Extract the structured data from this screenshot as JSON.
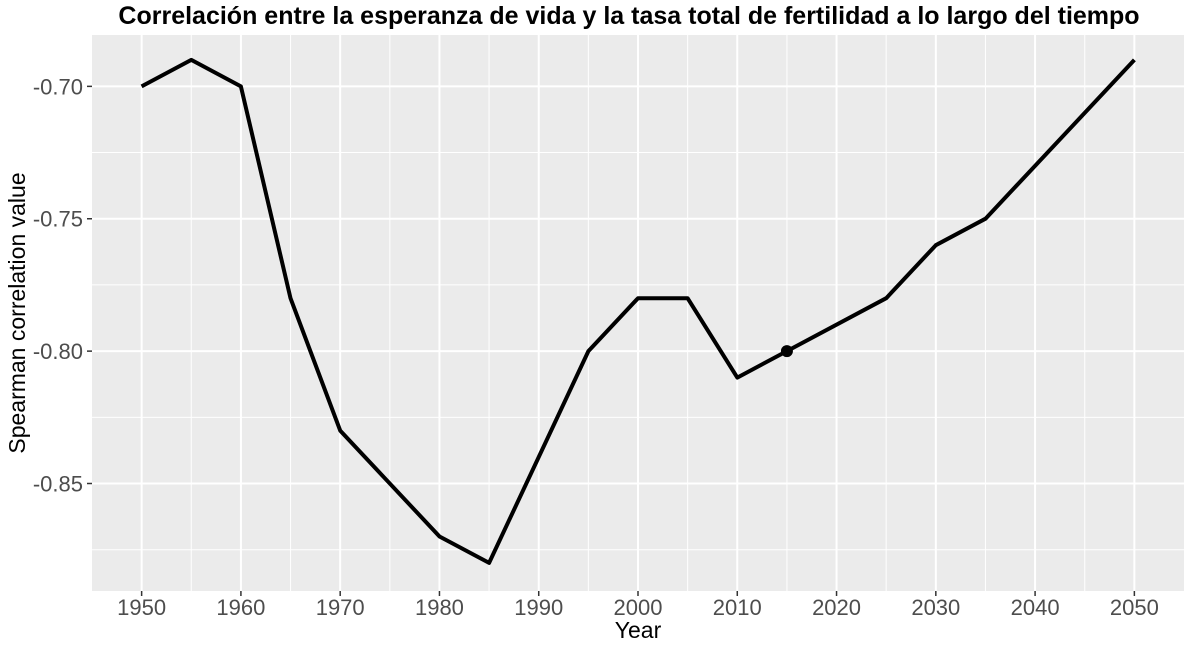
{
  "chart_data": {
    "type": "line",
    "title": "Correlación entre la esperanza de vida y la tasa total de fertilidad a lo largo del tiempo",
    "xlabel": "Year",
    "ylabel": "Spearman correlation value",
    "x": [
      1950,
      1955,
      1960,
      1965,
      1970,
      1980,
      1985,
      1995,
      2000,
      2005,
      2010,
      2015,
      2025,
      2030,
      2035,
      2050
    ],
    "series": [
      {
        "values": [
          -0.7,
          -0.69,
          -0.7,
          -0.78,
          -0.83,
          -0.87,
          -0.88,
          -0.8,
          -0.78,
          -0.78,
          -0.81,
          -0.8,
          -0.78,
          -0.76,
          -0.75,
          -0.69
        ]
      }
    ],
    "highlight_point": {
      "x": 2015,
      "y": -0.8
    },
    "x_ticks": [
      "1950",
      "1960",
      "1970",
      "1980",
      "1990",
      "2000",
      "2010",
      "2020",
      "2030",
      "2040",
      "2050"
    ],
    "x_tick_values": [
      1950,
      1960,
      1970,
      1980,
      1990,
      2000,
      2010,
      2020,
      2030,
      2040,
      2050
    ],
    "y_ticks": [
      "-0.85",
      "-0.80",
      "-0.75",
      "-0.70"
    ],
    "y_tick_values": [
      -0.85,
      -0.8,
      -0.75,
      -0.7
    ],
    "xlim": [
      1945,
      2055
    ],
    "ylim": [
      -0.8906,
      -0.6806
    ],
    "grid": true,
    "legend": "none",
    "colors": {
      "panel": "#ebebeb",
      "grid": "#ffffff",
      "line": "#000000"
    }
  }
}
